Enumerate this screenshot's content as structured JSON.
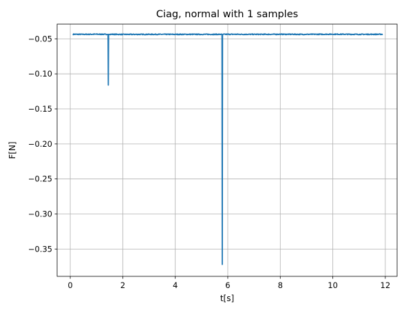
{
  "chart_data": {
    "type": "line",
    "title": "Ciag, normal with 1 samples",
    "xlabel": "t[s]",
    "ylabel": "F[N]",
    "xlim": [
      -0.5,
      12.45
    ],
    "ylim": [
      -0.389,
      -0.029
    ],
    "x_ticks": [
      0,
      2,
      4,
      6,
      8,
      10,
      12
    ],
    "y_ticks": [
      -0.05,
      -0.1,
      -0.15,
      -0.2,
      -0.25,
      -0.3,
      -0.35
    ],
    "x_tick_labels": [
      "0",
      "2",
      "4",
      "6",
      "8",
      "10",
      "12"
    ],
    "y_tick_labels": [
      "−0.05",
      "−0.10",
      "−0.15",
      "−0.20",
      "−0.25",
      "−0.30",
      "−0.35"
    ],
    "grid": true,
    "colors": {
      "line": "#1f77b4",
      "grid": "#b0b0b0",
      "axes": "#000000"
    },
    "series": [
      {
        "x": [
          0.1,
          0.5,
          1.0,
          1.4,
          1.44,
          1.45,
          1.46,
          1.5,
          2.0,
          3.0,
          4.0,
          5.0,
          5.78,
          5.79,
          5.8,
          5.81,
          6.0,
          7.0,
          8.0,
          9.0,
          10.0,
          11.0,
          11.9
        ],
        "y": [
          -0.0435,
          -0.0436,
          -0.0434,
          -0.0436,
          -0.0436,
          -0.116,
          -0.0436,
          -0.0435,
          -0.0437,
          -0.0436,
          -0.0436,
          -0.0436,
          -0.0436,
          -0.372,
          -0.044,
          -0.0436,
          -0.0435,
          -0.0436,
          -0.0435,
          -0.0436,
          -0.0434,
          -0.0436,
          -0.0435
        ],
        "noise_amplitude": 0.0006
      }
    ]
  }
}
